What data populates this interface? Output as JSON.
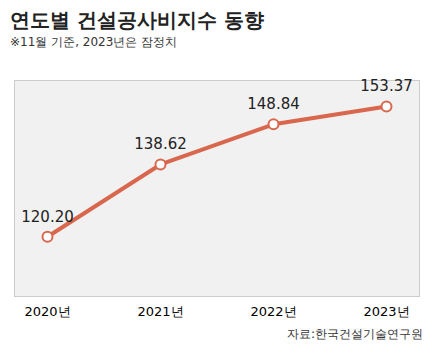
{
  "chart_data": {
    "type": "line",
    "title": "연도별 건설공사비지수 동향",
    "subtitle": "※11월 기준, 2023년은 잠정치",
    "source": "자료:한국건설기술연구원",
    "categories": [
      "2020년",
      "2021년",
      "2022년",
      "2023년"
    ],
    "values": [
      120.2,
      138.62,
      148.84,
      153.37
    ],
    "value_labels": [
      "120.20",
      "138.62",
      "148.84",
      "153.37"
    ],
    "color": "#d9674e",
    "marker": "circle",
    "data_labels": true,
    "tick_labels": "x",
    "grid": false,
    "ylim": [
      105,
      160
    ],
    "yticks": []
  }
}
